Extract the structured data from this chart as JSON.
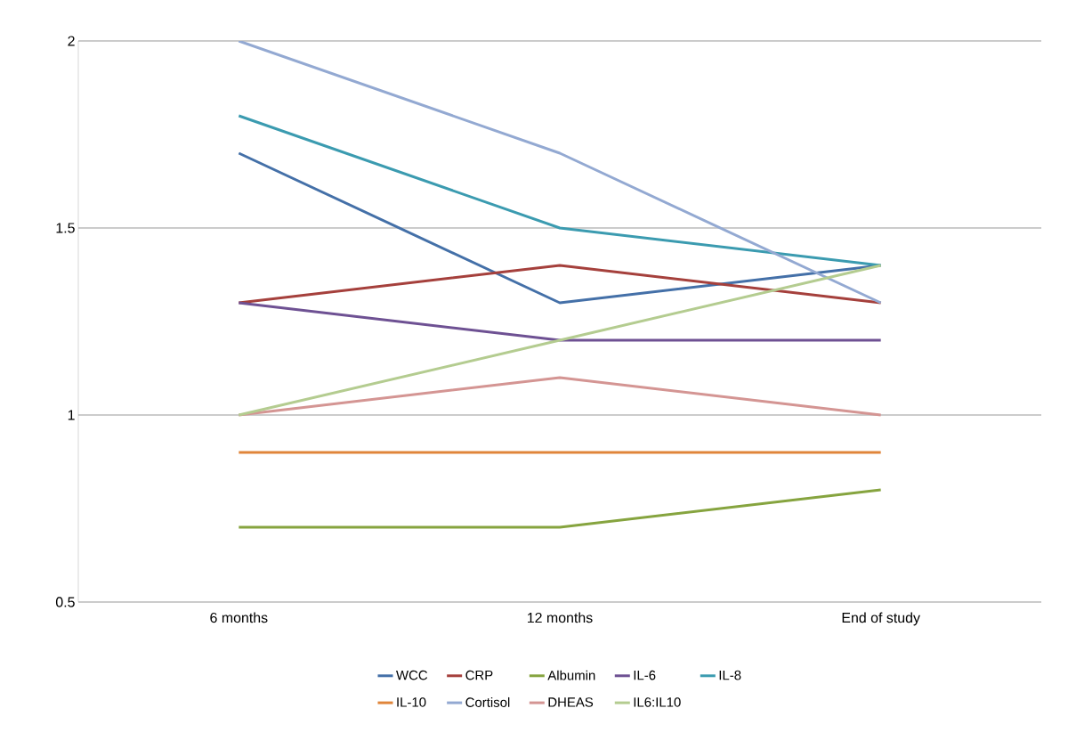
{
  "chart_data": {
    "type": "line",
    "categories": [
      "6 months",
      "12 months",
      "End of study"
    ],
    "series": [
      {
        "name": "WCC",
        "color": "#4470a8",
        "values": [
          1.7,
          1.3,
          1.4
        ]
      },
      {
        "name": "CRP",
        "color": "#a5403c",
        "values": [
          1.3,
          1.4,
          1.3
        ]
      },
      {
        "name": "Albumin",
        "color": "#86a43f",
        "values": [
          0.7,
          0.7,
          0.8
        ]
      },
      {
        "name": "IL-6",
        "color": "#6e5193",
        "values": [
          1.3,
          1.2,
          1.2
        ]
      },
      {
        "name": "IL-8",
        "color": "#3b9bb0",
        "values": [
          1.8,
          1.5,
          1.4
        ]
      },
      {
        "name": "IL-10",
        "color": "#e0853a",
        "values": [
          0.9,
          0.9,
          0.9
        ]
      },
      {
        "name": "Cortisol",
        "color": "#93a9d2",
        "values": [
          2.0,
          1.7,
          1.3
        ]
      },
      {
        "name": "DHEAS",
        "color": "#d49593",
        "values": [
          1.0,
          1.1,
          1.0
        ]
      },
      {
        "name": "IL6:IL10",
        "color": "#b4cc90",
        "values": [
          1.0,
          1.2,
          1.4
        ]
      }
    ],
    "ylim": [
      0.5,
      2
    ],
    "yticks": [
      0.5,
      1,
      1.5,
      2
    ],
    "grid": "y",
    "legend": "bottom",
    "marker": "none",
    "line_style": "solid"
  }
}
